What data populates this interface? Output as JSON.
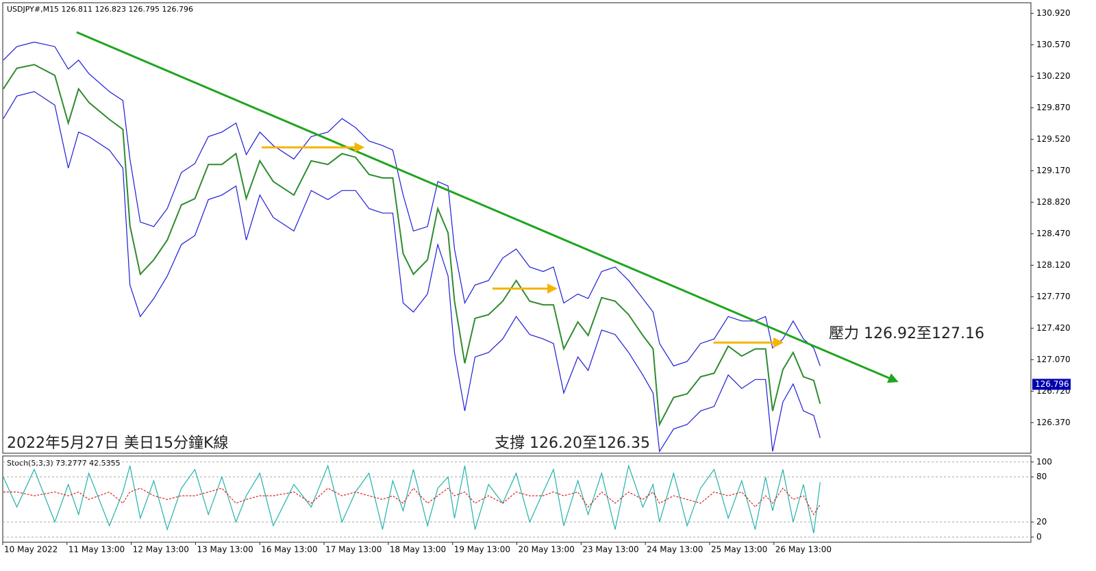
{
  "chart_data": [
    {
      "type": "line",
      "title": "USDJPY#,M15  126.811 126.823 126.795 126.796",
      "last_price": 126.796,
      "annotations": [
        "壓力 126.92至127.16",
        "支撐 126.20至126.35",
        "2022年5月27日 美日15分鐘K線"
      ],
      "x": [
        0.01,
        0.22,
        0.49,
        0.81,
        1.02,
        1.18,
        1.34,
        1.66,
        1.87,
        1.98,
        2.14,
        2.35,
        2.56,
        2.78,
        2.99,
        3.2,
        3.41,
        3.63,
        3.79,
        4.0,
        4.21,
        4.53,
        4.8,
        5.06,
        5.28,
        5.49,
        5.7,
        5.91,
        6.07,
        6.23,
        6.39,
        6.61,
        6.77,
        6.93,
        7.03,
        7.19,
        7.35,
        7.56,
        7.78,
        7.99,
        8.2,
        8.41,
        8.57,
        8.73,
        8.95,
        9.11,
        9.32,
        9.53,
        9.74,
        9.96,
        10.12,
        10.22,
        10.44,
        10.65,
        10.86,
        11.07,
        11.29,
        11.5,
        11.71,
        11.87,
        11.98,
        12.14,
        12.3,
        12.46,
        12.62,
        12.72
      ],
      "series": [
        {
          "color": "#2e8b2e",
          "values": [
            130.08,
            130.31,
            130.35,
            130.23,
            129.7,
            130.08,
            129.93,
            129.74,
            129.63,
            128.56,
            128.02,
            128.18,
            128.4,
            128.79,
            128.86,
            129.24,
            129.24,
            129.36,
            128.86,
            129.28,
            129.05,
            128.9,
            129.28,
            129.24,
            129.36,
            129.32,
            129.13,
            129.09,
            129.09,
            128.25,
            128.02,
            128.18,
            128.75,
            128.48,
            127.72,
            127.03,
            127.53,
            127.57,
            127.72,
            127.95,
            127.72,
            127.68,
            127.68,
            127.19,
            127.49,
            127.34,
            127.76,
            127.72,
            127.57,
            127.34,
            127.19,
            126.35,
            126.65,
            126.69,
            126.88,
            126.92,
            127.22,
            127.11,
            127.19,
            127.19,
            126.5,
            126.96,
            127.15,
            126.88,
            126.84,
            126.58
          ]
        },
        {
          "color": "#1c1cd6",
          "values": [
            130.4,
            130.55,
            130.6,
            130.55,
            130.3,
            130.4,
            130.25,
            130.05,
            129.95,
            129.3,
            128.6,
            128.55,
            128.75,
            129.15,
            129.25,
            129.55,
            129.6,
            129.7,
            129.35,
            129.6,
            129.45,
            129.3,
            129.55,
            129.6,
            129.75,
            129.65,
            129.5,
            129.45,
            129.4,
            128.9,
            128.5,
            128.55,
            129.05,
            129.0,
            128.3,
            127.7,
            127.9,
            127.95,
            128.2,
            128.3,
            128.1,
            128.05,
            128.1,
            127.7,
            127.8,
            127.75,
            128.05,
            128.1,
            127.95,
            127.75,
            127.6,
            127.25,
            127.0,
            127.05,
            127.25,
            127.3,
            127.55,
            127.5,
            127.5,
            127.55,
            127.2,
            127.3,
            127.5,
            127.3,
            127.2,
            127.0
          ]
        },
        {
          "color": "#1c1cd6",
          "values": [
            129.75,
            130.0,
            130.05,
            129.9,
            129.2,
            129.6,
            129.55,
            129.4,
            129.2,
            127.9,
            127.55,
            127.75,
            128.0,
            128.35,
            128.45,
            128.85,
            128.9,
            129.0,
            128.4,
            128.9,
            128.65,
            128.5,
            128.95,
            128.85,
            128.95,
            128.95,
            128.75,
            128.7,
            128.7,
            127.7,
            127.6,
            127.8,
            128.35,
            128.0,
            127.15,
            126.5,
            127.1,
            127.15,
            127.3,
            127.55,
            127.35,
            127.3,
            127.25,
            126.7,
            127.1,
            126.95,
            127.4,
            127.35,
            127.15,
            126.9,
            126.7,
            126.05,
            126.3,
            126.35,
            126.5,
            126.55,
            126.9,
            126.75,
            126.85,
            126.85,
            126.05,
            126.6,
            126.8,
            126.5,
            126.45,
            126.2
          ]
        }
      ],
      "lines": [
        {
          "color": "#1fa51f",
          "x": [
            1.15,
            13.91
          ],
          "y": [
            130.71,
            126.83
          ]
        },
        {
          "color": "#f5b400",
          "x": [
            4.03,
            5.6
          ],
          "y": [
            129.43,
            129.43
          ]
        },
        {
          "color": "#f5b400",
          "x": [
            7.62,
            8.6
          ],
          "y": [
            127.86,
            127.86
          ]
        },
        {
          "color": "#f5b400",
          "x": [
            11.06,
            12.12
          ],
          "y": [
            127.26,
            127.26
          ]
        }
      ],
      "xlim": [
        0,
        16
      ],
      "ylim": [
        126.03,
        131.03
      ],
      "yticks": [
        {
          "value": 126.37,
          "label": "126.370"
        },
        {
          "value": 126.72,
          "label": "126.720"
        },
        {
          "value": 127.07,
          "label": "127.070"
        },
        {
          "value": 127.42,
          "label": "127.420"
        },
        {
          "value": 127.77,
          "label": "127.770"
        },
        {
          "value": 128.12,
          "label": "128.120"
        },
        {
          "value": 128.47,
          "label": "128.470"
        },
        {
          "value": 128.82,
          "label": "128.820"
        },
        {
          "value": 129.17,
          "label": "129.170"
        },
        {
          "value": 129.52,
          "label": "129.520"
        },
        {
          "value": 129.87,
          "label": "129.870"
        },
        {
          "value": 130.22,
          "label": "130.220"
        },
        {
          "value": 130.57,
          "label": "130.570"
        },
        {
          "value": 130.92,
          "label": "130.920"
        }
      ]
    },
    {
      "type": "line",
      "title": "Stoch(5,3,3) 73.2777 42.5355",
      "x": [
        0.01,
        0.22,
        0.49,
        0.81,
        1.02,
        1.18,
        1.34,
        1.66,
        1.87,
        1.98,
        2.14,
        2.35,
        2.56,
        2.78,
        2.99,
        3.2,
        3.41,
        3.63,
        3.79,
        4.0,
        4.21,
        4.53,
        4.8,
        5.06,
        5.28,
        5.49,
        5.7,
        5.91,
        6.07,
        6.23,
        6.39,
        6.61,
        6.77,
        6.93,
        7.03,
        7.19,
        7.35,
        7.56,
        7.78,
        7.99,
        8.2,
        8.41,
        8.57,
        8.73,
        8.95,
        9.11,
        9.32,
        9.53,
        9.74,
        9.96,
        10.12,
        10.22,
        10.44,
        10.65,
        10.86,
        11.07,
        11.29,
        11.5,
        11.71,
        11.87,
        11.98,
        12.14,
        12.3,
        12.46,
        12.62,
        12.72
      ],
      "series": [
        {
          "color": "#20b2aa",
          "values": [
            80,
            40,
            90,
            20,
            70,
            30,
            85,
            15,
            60,
            95,
            25,
            75,
            10,
            65,
            90,
            30,
            80,
            20,
            55,
            85,
            15,
            70,
            40,
            95,
            20,
            60,
            85,
            10,
            75,
            35,
            90,
            15,
            65,
            80,
            25,
            95,
            10,
            70,
            45,
            85,
            20,
            60,
            90,
            15,
            75,
            30,
            85,
            10,
            95,
            40,
            70,
            20,
            85,
            15,
            65,
            90,
            25,
            75,
            10,
            80,
            35,
            90,
            20,
            70,
            5,
            73
          ]
        },
        {
          "color": "#e02020",
          "values": [
            60,
            60,
            55,
            60,
            55,
            60,
            50,
            60,
            45,
            60,
            65,
            55,
            50,
            55,
            55,
            60,
            65,
            45,
            50,
            55,
            55,
            60,
            45,
            65,
            55,
            60,
            55,
            50,
            55,
            45,
            65,
            45,
            55,
            65,
            55,
            60,
            45,
            55,
            45,
            60,
            55,
            55,
            60,
            55,
            60,
            40,
            60,
            45,
            60,
            50,
            60,
            45,
            55,
            50,
            45,
            60,
            55,
            60,
            40,
            55,
            45,
            65,
            50,
            55,
            30,
            43
          ]
        }
      ],
      "xlim": [
        0,
        16
      ],
      "ylim": [
        -7,
        108
      ],
      "yticks": [
        0,
        20,
        80,
        100
      ],
      "xticks": [
        {
          "value": 0,
          "label": "10 May 2022"
        },
        {
          "value": 1,
          "label": "11 May 13:00"
        },
        {
          "value": 2,
          "label": "12 May 13:00"
        },
        {
          "value": 3,
          "label": "13 May 13:00"
        },
        {
          "value": 4,
          "label": "16 May 13:00"
        },
        {
          "value": 5,
          "label": "17 May 13:00"
        },
        {
          "value": 6,
          "label": "18 May 13:00"
        },
        {
          "value": 7,
          "label": "19 May 13:00"
        },
        {
          "value": 8,
          "label": "20 May 13:00"
        },
        {
          "value": 9,
          "label": "23 May 13:00"
        },
        {
          "value": 10,
          "label": "24 May 13:00"
        },
        {
          "value": 11,
          "label": "25 May 13:00"
        },
        {
          "value": 12,
          "label": "26 May 13:00"
        }
      ]
    }
  ]
}
